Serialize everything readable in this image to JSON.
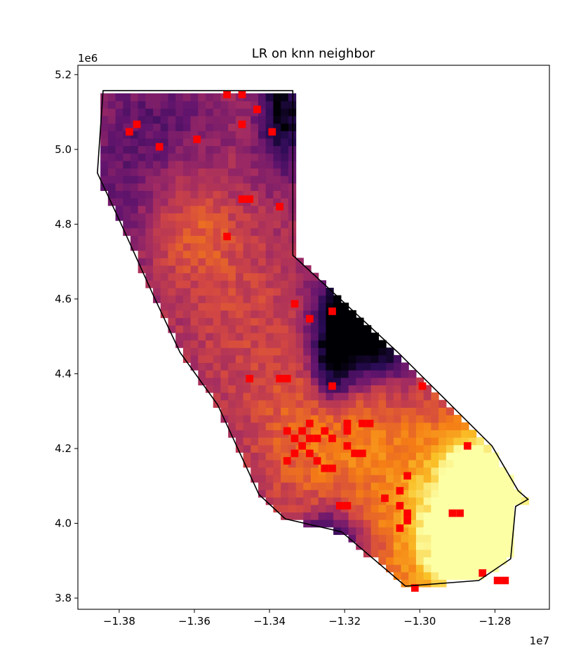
{
  "chart_data": {
    "type": "heatmap",
    "title": "LR on knn neighbor",
    "xlabel": "",
    "ylabel": "",
    "x_offset_label": "1e7",
    "y_offset_label": "1e6",
    "xlim": [
      -1.391,
      -1.2655
    ],
    "ylim": [
      3.77,
      5.225
    ],
    "x_ticks": [
      -1.38,
      -1.36,
      -1.34,
      -1.32,
      -1.3,
      -1.28
    ],
    "x_tick_labels": [
      "−1.38",
      "−1.36",
      "−1.34",
      "−1.32",
      "−1.30",
      "−1.28"
    ],
    "y_ticks": [
      3.8,
      4.0,
      4.2,
      4.4,
      4.6,
      4.8,
      5.0,
      5.2
    ],
    "y_tick_labels": [
      "3.8",
      "4.0",
      "4.2",
      "4.4",
      "4.6",
      "4.8",
      "5.0",
      "5.2"
    ],
    "colormap": "inferno",
    "grid": false,
    "legend": "none",
    "highlight_color": "#ff0000",
    "boundary_color": "#000000",
    "cell_size": [
      0.002,
      0.02
    ],
    "boundary": [
      [
        -1.3843,
        5.157
      ],
      [
        -1.3338,
        5.157
      ],
      [
        -1.3338,
        4.717
      ],
      [
        -1.3058,
        4.457
      ],
      [
        -1.2958,
        4.357
      ],
      [
        -1.2808,
        4.207
      ],
      [
        -1.2738,
        4.087
      ],
      [
        -1.2712,
        4.064
      ],
      [
        -1.2745,
        4.045
      ],
      [
        -1.2758,
        3.905
      ],
      [
        -1.2843,
        3.847
      ],
      [
        -1.3038,
        3.832
      ],
      [
        -1.3208,
        3.977
      ],
      [
        -1.3358,
        4.012
      ],
      [
        -1.3428,
        4.077
      ],
      [
        -1.3538,
        4.317
      ],
      [
        -1.3638,
        4.457
      ],
      [
        -1.3708,
        4.607
      ],
      [
        -1.3798,
        4.807
      ],
      [
        -1.3858,
        4.937
      ],
      [
        -1.3843,
        5.157
      ]
    ],
    "highlight_points": [
      [
        -1.3513,
        5.147
      ],
      [
        -1.3473,
        5.147
      ],
      [
        -1.3433,
        5.107
      ],
      [
        -1.3753,
        5.067
      ],
      [
        -1.3773,
        5.047
      ],
      [
        -1.3473,
        5.067
      ],
      [
        -1.3393,
        5.047
      ],
      [
        -1.3593,
        5.027
      ],
      [
        -1.3693,
        5.007
      ],
      [
        -1.3473,
        4.867
      ],
      [
        -1.3453,
        4.867
      ],
      [
        -1.3373,
        4.847
      ],
      [
        -1.3513,
        4.767
      ],
      [
        -1.3333,
        4.587
      ],
      [
        -1.3233,
        4.567
      ],
      [
        -1.3293,
        4.547
      ],
      [
        -1.3453,
        4.387
      ],
      [
        -1.3373,
        4.387
      ],
      [
        -1.3353,
        4.387
      ],
      [
        -1.3233,
        4.367
      ],
      [
        -1.2993,
        4.367
      ],
      [
        -1.3353,
        4.247
      ],
      [
        -1.3313,
        4.247
      ],
      [
        -1.3293,
        4.267
      ],
      [
        -1.3253,
        4.247
      ],
      [
        -1.3193,
        4.267
      ],
      [
        -1.3133,
        4.267
      ],
      [
        -1.3153,
        4.267
      ],
      [
        -1.3333,
        4.227
      ],
      [
        -1.3313,
        4.207
      ],
      [
        -1.3293,
        4.227
      ],
      [
        -1.3273,
        4.227
      ],
      [
        -1.3233,
        4.227
      ],
      [
        -1.3193,
        4.247
      ],
      [
        -1.3333,
        4.187
      ],
      [
        -1.3293,
        4.187
      ],
      [
        -1.3273,
        4.167
      ],
      [
        -1.3253,
        4.147
      ],
      [
        -1.3233,
        4.147
      ],
      [
        -1.3193,
        4.207
      ],
      [
        -1.3173,
        4.187
      ],
      [
        -1.3153,
        4.187
      ],
      [
        -1.3353,
        4.167
      ],
      [
        -1.3033,
        4.127
      ],
      [
        -1.3053,
        4.087
      ],
      [
        -1.3093,
        4.067
      ],
      [
        -1.3053,
        4.047
      ],
      [
        -1.3193,
        4.047
      ],
      [
        -1.3213,
        4.047
      ],
      [
        -1.3033,
        4.027
      ],
      [
        -1.3033,
        4.007
      ],
      [
        -1.3053,
        3.987
      ],
      [
        -1.2913,
        4.027
      ],
      [
        -1.2893,
        4.027
      ],
      [
        -1.2873,
        4.207
      ],
      [
        -1.2833,
        3.867
      ],
      [
        -1.2793,
        3.847
      ],
      [
        -1.2773,
        3.847
      ],
      [
        -1.3013,
        3.827
      ]
    ]
  }
}
